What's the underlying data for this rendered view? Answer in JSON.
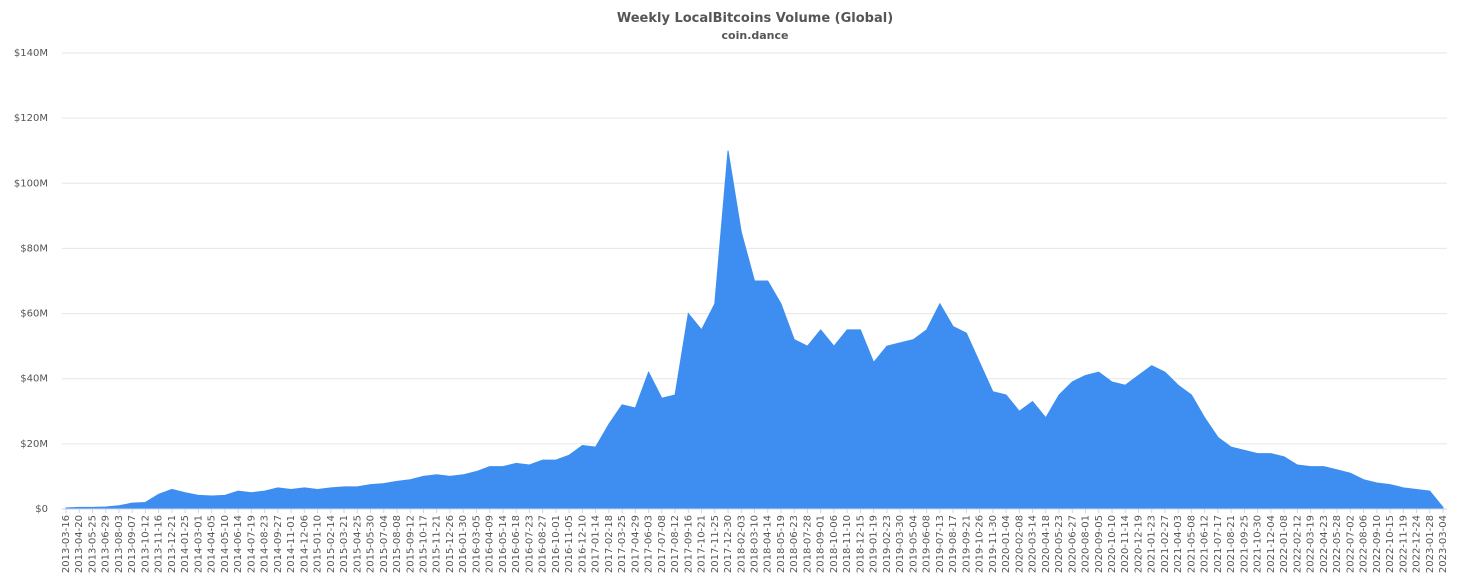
{
  "chart_data": {
    "type": "area",
    "title": "Weekly LocalBitcoins Volume (Global)",
    "subtitle": "coin.dance",
    "color": "#3d8ef0",
    "grid": true,
    "categories": [
      "2013-03-16",
      "2013-04-20",
      "2013-05-25",
      "2013-06-29",
      "2013-08-03",
      "2013-09-07",
      "2013-10-12",
      "2013-11-16",
      "2013-12-21",
      "2014-01-25",
      "2014-03-01",
      "2014-04-05",
      "2014-05-10",
      "2014-06-14",
      "2014-07-19",
      "2014-08-23",
      "2014-09-27",
      "2014-11-01",
      "2014-12-06",
      "2015-01-10",
      "2015-02-14",
      "2015-03-21",
      "2015-04-25",
      "2015-05-30",
      "2015-07-04",
      "2015-08-08",
      "2015-09-12",
      "2015-10-17",
      "2015-11-21",
      "2015-12-26",
      "2016-01-30",
      "2016-03-05",
      "2016-04-09",
      "2016-05-14",
      "2016-06-18",
      "2016-07-23",
      "2016-08-27",
      "2016-10-01",
      "2016-11-05",
      "2016-12-10",
      "2017-01-14",
      "2017-02-18",
      "2017-03-25",
      "2017-04-29",
      "2017-06-03",
      "2017-07-08",
      "2017-08-12",
      "2017-09-16",
      "2017-10-21",
      "2017-11-25",
      "2017-12-30",
      "2018-02-03",
      "2018-03-10",
      "2018-04-14",
      "2018-05-19",
      "2018-06-23",
      "2018-07-28",
      "2018-09-01",
      "2018-10-06",
      "2018-11-10",
      "2018-12-15",
      "2019-01-19",
      "2019-02-23",
      "2019-03-30",
      "2019-05-04",
      "2019-06-08",
      "2019-07-13",
      "2019-08-17",
      "2019-09-21",
      "2019-10-26",
      "2019-11-30",
      "2020-01-04",
      "2020-02-08",
      "2020-03-14",
      "2020-04-18",
      "2020-05-23",
      "2020-06-27",
      "2020-08-01",
      "2020-09-05",
      "2020-10-10",
      "2020-11-14",
      "2020-12-19",
      "2021-01-23",
      "2021-02-27",
      "2021-04-03",
      "2021-05-08",
      "2021-06-12",
      "2021-07-17",
      "2021-08-21",
      "2021-09-25",
      "2021-10-30",
      "2021-12-04",
      "2022-01-08",
      "2022-02-12",
      "2022-03-19",
      "2022-04-23",
      "2022-05-28",
      "2022-07-02",
      "2022-08-06",
      "2022-09-10",
      "2022-10-15",
      "2022-11-19",
      "2022-12-24",
      "2023-01-28",
      "2023-03-04"
    ],
    "values": [
      0.3,
      0.5,
      0.5,
      0.6,
      1.0,
      1.8,
      2.0,
      4.5,
      6,
      5,
      4.2,
      4,
      4.2,
      5.5,
      5,
      5.5,
      6.5,
      6,
      6.5,
      6,
      6.5,
      6.8,
      6.8,
      7.5,
      7.8,
      8.5,
      9,
      10,
      10.5,
      10,
      10.5,
      11.5,
      13,
      13,
      14,
      13.5,
      15,
      15,
      16.5,
      19.5,
      19,
      26,
      32,
      31,
      42,
      34,
      35,
      60,
      55,
      63,
      110,
      85,
      70,
      70,
      63,
      52,
      50,
      55,
      50,
      55,
      55,
      45,
      50,
      51,
      52,
      55,
      63,
      56,
      54,
      45,
      36,
      35,
      30,
      33,
      28,
      35,
      39,
      41,
      42,
      39,
      38,
      41,
      44,
      42,
      38,
      35,
      28,
      22,
      19,
      18,
      17,
      17,
      16,
      13.5,
      13,
      13,
      12,
      11,
      9,
      8,
      7.5,
      6.5,
      6,
      5.5,
      0.5
    ],
    "ylim": [
      0,
      140
    ],
    "yticks": [
      {
        "value": 0,
        "label": "$0"
      },
      {
        "value": 20,
        "label": "$20M"
      },
      {
        "value": 40,
        "label": "$40M"
      },
      {
        "value": 60,
        "label": "$60M"
      },
      {
        "value": 80,
        "label": "$80M"
      },
      {
        "value": 100,
        "label": "$100M"
      },
      {
        "value": 120,
        "label": "$120M"
      },
      {
        "value": 140,
        "label": "$140M"
      }
    ]
  }
}
